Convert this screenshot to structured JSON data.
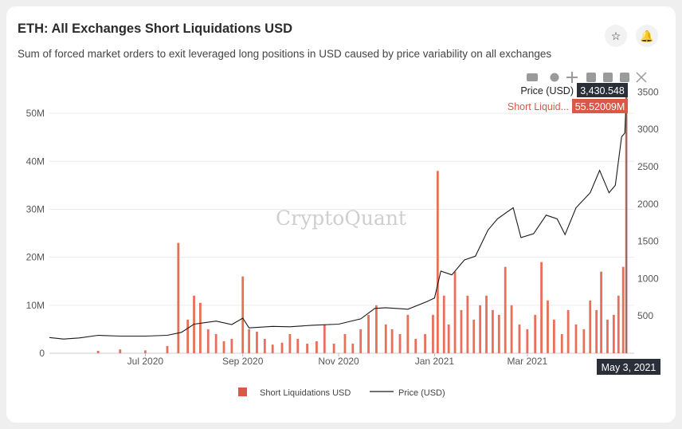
{
  "header": {
    "title": "ETH: All Exchanges Short Liquidations USD",
    "subtitle": "Sum of forced market orders to exit leveraged long positions in USD caused by price variability on all exchanges"
  },
  "toolbar": {
    "star_icon": "star-icon",
    "bell_icon": "bell-icon"
  },
  "hover": {
    "price_label": "Price (USD)",
    "price_value": "3,430.548",
    "liq_label": "Short Liquid...",
    "liq_value": "55.52009M",
    "date_label": "May 3, 2021"
  },
  "watermark": "CryptoQuant",
  "colors": {
    "bar": "#e8705a",
    "line": "#1a1a1a",
    "price_tag": "#2b2f3a",
    "liq_tag": "#d9584a"
  },
  "chart_data": {
    "type": "bar+line",
    "x_range": [
      "2020-05-01",
      "2021-05-08"
    ],
    "x_ticks": [
      "Jul 2020",
      "Sep 2020",
      "Nov 2020",
      "Jan 2021",
      "Mar 2021"
    ],
    "left_axis": {
      "ticks": [
        "0",
        "10M",
        "20M",
        "30M",
        "40M",
        "50M"
      ],
      "range": [
        0,
        56
      ]
    },
    "right_axis": {
      "ticks": [
        "500",
        "1000",
        "1500",
        "2000",
        "2500",
        "3000",
        "3500"
      ],
      "range": [
        0,
        3600
      ]
    },
    "series": [
      {
        "name": "Short Liquidations USD",
        "type": "bar",
        "unit": "M USD",
        "points": [
          [
            "2020-06-01",
            0.5
          ],
          [
            "2020-06-15",
            0.8
          ],
          [
            "2020-07-01",
            0.6
          ],
          [
            "2020-07-15",
            1.5
          ],
          [
            "2020-07-22",
            23
          ],
          [
            "2020-07-28",
            7
          ],
          [
            "2020-08-01",
            12
          ],
          [
            "2020-08-05",
            10.5
          ],
          [
            "2020-08-10",
            5
          ],
          [
            "2020-08-15",
            4
          ],
          [
            "2020-08-20",
            2.5
          ],
          [
            "2020-08-25",
            3
          ],
          [
            "2020-09-01",
            16
          ],
          [
            "2020-09-05",
            5
          ],
          [
            "2020-09-10",
            4.5
          ],
          [
            "2020-09-15",
            3
          ],
          [
            "2020-09-20",
            1.8
          ],
          [
            "2020-09-26",
            2.2
          ],
          [
            "2020-10-01",
            4
          ],
          [
            "2020-10-06",
            3
          ],
          [
            "2020-10-12",
            2
          ],
          [
            "2020-10-18",
            2.5
          ],
          [
            "2020-10-23",
            6
          ],
          [
            "2020-10-29",
            2
          ],
          [
            "2020-11-05",
            4
          ],
          [
            "2020-11-10",
            2
          ],
          [
            "2020-11-15",
            5
          ],
          [
            "2020-11-20",
            8
          ],
          [
            "2020-11-25",
            10
          ],
          [
            "2020-12-01",
            6
          ],
          [
            "2020-12-05",
            5
          ],
          [
            "2020-12-10",
            4
          ],
          [
            "2020-12-15",
            8
          ],
          [
            "2020-12-20",
            3
          ],
          [
            "2020-12-26",
            4
          ],
          [
            "2020-12-31",
            8
          ],
          [
            "2021-01-03",
            38
          ],
          [
            "2021-01-07",
            12
          ],
          [
            "2021-01-10",
            6
          ],
          [
            "2021-01-14",
            17
          ],
          [
            "2021-01-18",
            9
          ],
          [
            "2021-01-22",
            12
          ],
          [
            "2021-01-26",
            7
          ],
          [
            "2021-01-30",
            10
          ],
          [
            "2021-02-03",
            12
          ],
          [
            "2021-02-07",
            9
          ],
          [
            "2021-02-11",
            8
          ],
          [
            "2021-02-15",
            18
          ],
          [
            "2021-02-19",
            10
          ],
          [
            "2021-02-24",
            6
          ],
          [
            "2021-03-01",
            5
          ],
          [
            "2021-03-06",
            8
          ],
          [
            "2021-03-10",
            19
          ],
          [
            "2021-03-14",
            11
          ],
          [
            "2021-03-18",
            7
          ],
          [
            "2021-03-23",
            4
          ],
          [
            "2021-03-27",
            9
          ],
          [
            "2021-04-01",
            6
          ],
          [
            "2021-04-06",
            5
          ],
          [
            "2021-04-10",
            11
          ],
          [
            "2021-04-14",
            9
          ],
          [
            "2021-04-17",
            17
          ],
          [
            "2021-04-21",
            7
          ],
          [
            "2021-04-25",
            8
          ],
          [
            "2021-04-28",
            12
          ],
          [
            "2021-05-01",
            18
          ],
          [
            "2021-05-03",
            55.52
          ]
        ]
      },
      {
        "name": "Price (USD)",
        "type": "line",
        "unit": "USD",
        "points": [
          [
            "2020-05-01",
            210
          ],
          [
            "2020-05-10",
            190
          ],
          [
            "2020-05-20",
            205
          ],
          [
            "2020-06-01",
            240
          ],
          [
            "2020-06-15",
            230
          ],
          [
            "2020-07-01",
            230
          ],
          [
            "2020-07-15",
            240
          ],
          [
            "2020-07-24",
            280
          ],
          [
            "2020-08-01",
            390
          ],
          [
            "2020-08-15",
            430
          ],
          [
            "2020-08-25",
            385
          ],
          [
            "2020-09-01",
            470
          ],
          [
            "2020-09-05",
            340
          ],
          [
            "2020-09-20",
            360
          ],
          [
            "2020-10-01",
            355
          ],
          [
            "2020-10-15",
            375
          ],
          [
            "2020-11-01",
            390
          ],
          [
            "2020-11-15",
            460
          ],
          [
            "2020-11-24",
            600
          ],
          [
            "2020-12-01",
            610
          ],
          [
            "2020-12-15",
            590
          ],
          [
            "2020-12-27",
            690
          ],
          [
            "2021-01-01",
            740
          ],
          [
            "2021-01-05",
            1100
          ],
          [
            "2021-01-12",
            1050
          ],
          [
            "2021-01-20",
            1250
          ],
          [
            "2021-01-27",
            1300
          ],
          [
            "2021-02-04",
            1650
          ],
          [
            "2021-02-10",
            1800
          ],
          [
            "2021-02-20",
            1950
          ],
          [
            "2021-02-25",
            1550
          ],
          [
            "2021-03-05",
            1600
          ],
          [
            "2021-03-13",
            1850
          ],
          [
            "2021-03-20",
            1800
          ],
          [
            "2021-03-25",
            1590
          ],
          [
            "2021-04-01",
            1950
          ],
          [
            "2021-04-10",
            2150
          ],
          [
            "2021-04-16",
            2450
          ],
          [
            "2021-04-22",
            2150
          ],
          [
            "2021-04-26",
            2250
          ],
          [
            "2021-04-30",
            2900
          ],
          [
            "2021-05-02",
            2950
          ],
          [
            "2021-05-03",
            3430.548
          ]
        ]
      }
    ],
    "legend_position": "bottom",
    "grid": true
  }
}
